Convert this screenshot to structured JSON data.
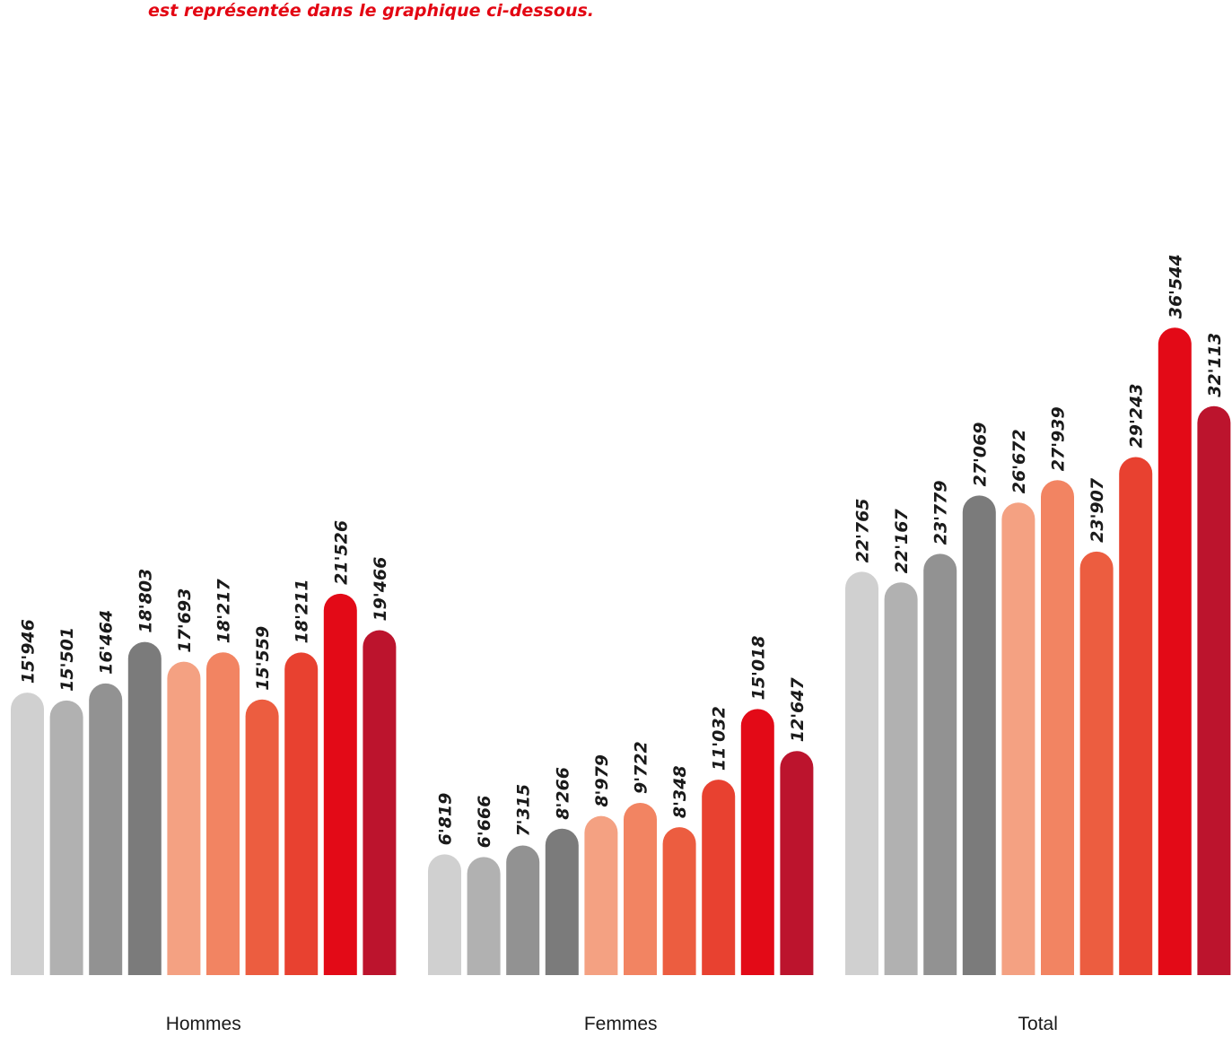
{
  "intro_text": "est représentée dans le graphique ci-dessous.",
  "chart_data": {
    "type": "bar",
    "title": "",
    "xlabel": "",
    "ylabel": "",
    "categories": [
      "Hommes",
      "Femmes",
      "Total"
    ],
    "ylim": [
      0,
      40000
    ],
    "grid": false,
    "legend": "none",
    "bar_colors": [
      "#d0d0d0",
      "#b1b1b1",
      "#929292",
      "#7b7b7b",
      "#f4a182",
      "#f28462",
      "#ec5d40",
      "#e84130",
      "#e30a17",
      "#bc142d"
    ],
    "groups": [
      {
        "name": "Hommes",
        "values": [
          15946,
          15501,
          16464,
          18803,
          17693,
          18217,
          15559,
          18211,
          21526,
          19466
        ],
        "labels": [
          "15'946",
          "15'501",
          "16'464",
          "18'803",
          "17'693",
          "18'217",
          "15'559",
          "18'211",
          "21'526",
          "19'466"
        ]
      },
      {
        "name": "Femmes",
        "values": [
          6819,
          6666,
          7315,
          8266,
          8979,
          9722,
          8348,
          11032,
          15018,
          12647
        ],
        "labels": [
          "6'819",
          "6'666",
          "7'315",
          "8'266",
          "8'979",
          "9'722",
          "8'348",
          "11'032",
          "15'018",
          "12'647"
        ]
      },
      {
        "name": "Total",
        "values": [
          22765,
          22167,
          23779,
          27069,
          26672,
          27939,
          23907,
          29243,
          36544,
          32113
        ],
        "labels": [
          "22'765",
          "22'167",
          "23'779",
          "27'069",
          "26'672",
          "27'939",
          "23'907",
          "29'243",
          "36'544",
          "32'113"
        ]
      }
    ]
  }
}
